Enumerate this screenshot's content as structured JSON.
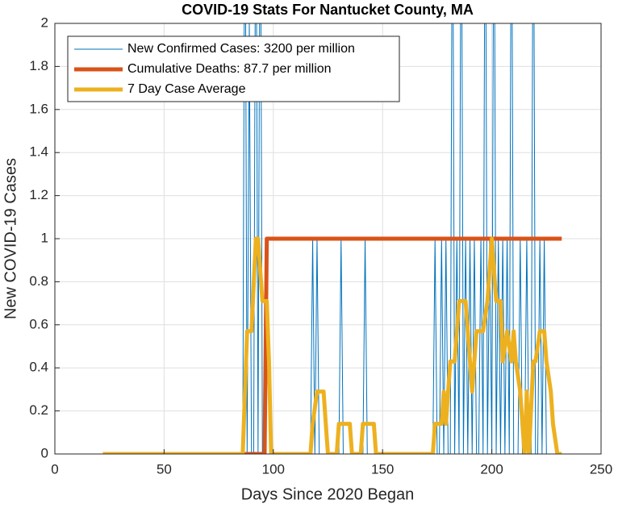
{
  "chart_data": {
    "type": "line",
    "title": "COVID-19 Stats For Nantucket County, MA",
    "x_label": "Days Since 2020 Began",
    "y_label": "New COVID-19 Cases",
    "xlim": [
      0,
      250
    ],
    "xticks": [
      0,
      50,
      100,
      150,
      200,
      250
    ],
    "ylim": [
      0,
      2
    ],
    "yticks": [
      0,
      0.2,
      0.4,
      0.6,
      0.8,
      1,
      1.2,
      1.4,
      1.6,
      1.8,
      2
    ],
    "grid": true,
    "legend": "top-left",
    "series": [
      {
        "name": "New Confirmed Cases: 3200 per million",
        "color": "#0072BD",
        "width": 1,
        "x": [
          22,
          86,
          87,
          88,
          89,
          90,
          91,
          92,
          93,
          94,
          95,
          117,
          118,
          119,
          120,
          121,
          130,
          131,
          132,
          141,
          142,
          143,
          173,
          174,
          175,
          176,
          177,
          178,
          179,
          180,
          181,
          182,
          183,
          184,
          185,
          186,
          187,
          188,
          189,
          190,
          191,
          192,
          193,
          194,
          195,
          196,
          197,
          198,
          199,
          200,
          201,
          202,
          203,
          204,
          205,
          206,
          207,
          208,
          209,
          210,
          212,
          213,
          214,
          215,
          216,
          217,
          218,
          219,
          220,
          221,
          222,
          223,
          224,
          225,
          232
        ],
        "values": [
          0,
          0,
          3,
          0,
          2,
          0,
          0,
          3,
          0,
          3,
          0,
          0,
          1,
          0,
          1,
          0,
          0,
          1,
          0,
          0,
          1,
          0,
          0,
          1,
          0,
          0,
          1,
          0,
          1,
          0,
          0,
          3,
          0,
          1,
          0,
          3,
          0,
          1,
          0,
          1,
          0,
          1,
          0,
          0,
          1,
          0,
          3,
          0,
          1,
          0,
          3,
          0,
          1,
          0,
          1,
          0,
          1,
          0,
          3,
          0,
          0,
          1,
          0,
          0,
          1,
          0,
          0,
          3,
          0,
          0,
          1,
          0,
          1,
          0,
          0
        ]
      },
      {
        "name": "Cumulative Deaths: 87.7 per million",
        "color": "#D95319",
        "width": 5,
        "x": [
          22,
          96,
          97,
          232
        ],
        "values": [
          0,
          0,
          1,
          1
        ]
      },
      {
        "name": "7 Day Case Average",
        "color": "#EDB120",
        "width": 5,
        "x": [
          22,
          86,
          88,
          90,
          92,
          93,
          95,
          97,
          98,
          99,
          117,
          118,
          120,
          123,
          124,
          125,
          129,
          130,
          135,
          136,
          140,
          141,
          146,
          147,
          173,
          174,
          177,
          178,
          179,
          180,
          181,
          183,
          185,
          188,
          190,
          191,
          193,
          196,
          198,
          200,
          202,
          204,
          205,
          207,
          209,
          210,
          211,
          213,
          214,
          215,
          216,
          217,
          219,
          220,
          222,
          224,
          225,
          227,
          228,
          230,
          232
        ],
        "values": [
          0,
          0,
          0.57,
          0.57,
          1,
          1,
          0.71,
          0.71,
          0.43,
          0,
          0,
          0.14,
          0.29,
          0.29,
          0.14,
          0,
          0,
          0.14,
          0.14,
          0,
          0,
          0.14,
          0.14,
          0,
          0,
          0.14,
          0.14,
          0.29,
          0.14,
          0.29,
          0.43,
          0.43,
          0.71,
          0.71,
          0.43,
          0.29,
          0.57,
          0.57,
          0.71,
          1,
          0.71,
          0.71,
          0.43,
          0.57,
          0.43,
          0.57,
          0.43,
          0.29,
          0.14,
          0,
          0.29,
          0,
          0.43,
          0.43,
          0.57,
          0.57,
          0.43,
          0.29,
          0.14,
          0,
          0
        ]
      }
    ]
  }
}
